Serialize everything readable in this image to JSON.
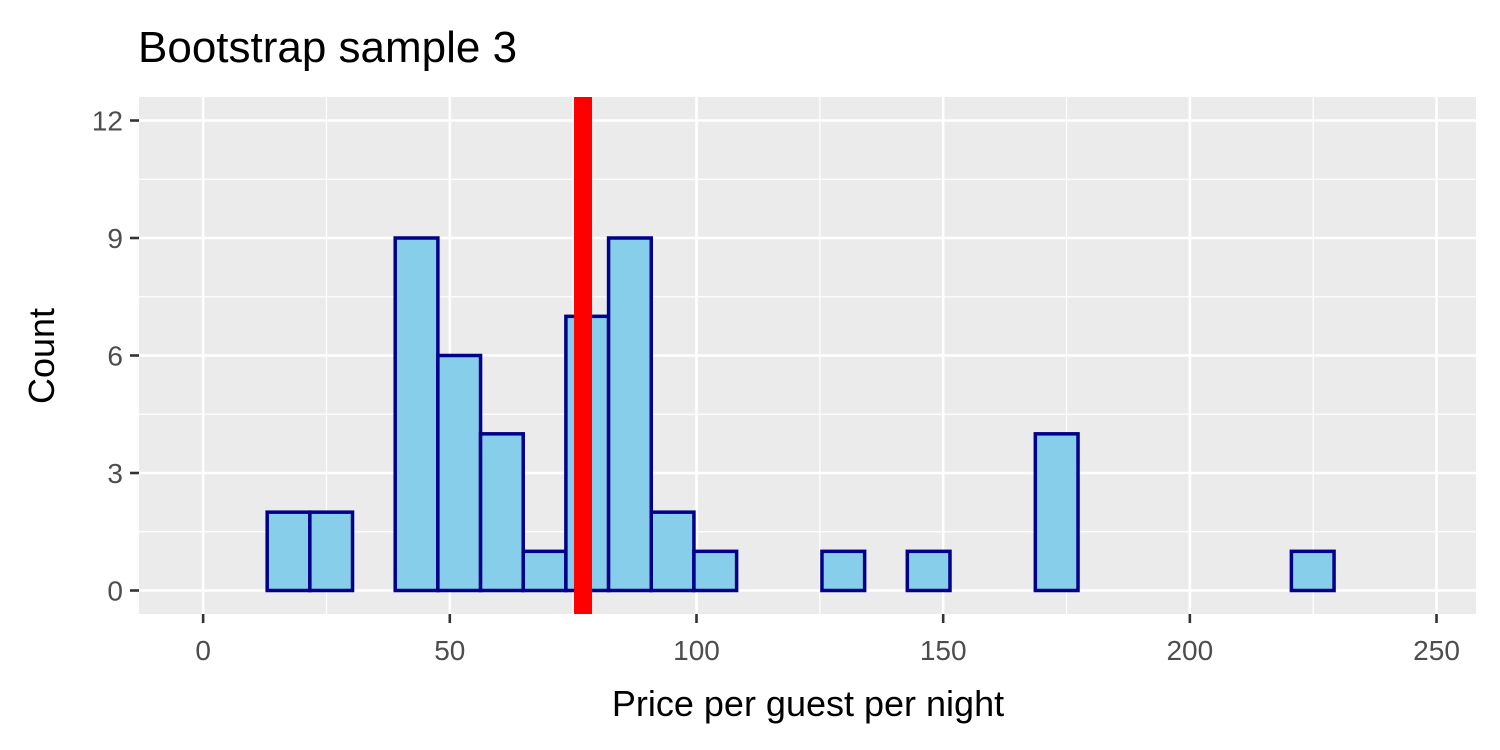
{
  "chart_data": {
    "type": "bar",
    "subtype": "histogram",
    "title": "Bootstrap sample 3",
    "xlabel": "Price per guest per night",
    "ylabel": "Count",
    "xlim": [
      -13,
      258
    ],
    "ylim": [
      -0.6,
      12.6
    ],
    "x_ticks": [
      0,
      50,
      100,
      150,
      200,
      250
    ],
    "y_ticks": [
      0,
      3,
      6,
      9,
      12
    ],
    "x_tick_labels": [
      "0",
      "50",
      "100",
      "150",
      "200",
      "250"
    ],
    "y_tick_labels": [
      "0",
      "3",
      "6",
      "9",
      "12"
    ],
    "bin_width": 8.65,
    "bin_starts": [
      4.33,
      12.98,
      21.63,
      30.28,
      38.93,
      47.58,
      56.23,
      64.88,
      73.53,
      82.18,
      90.83,
      99.48,
      108.13,
      116.78,
      125.43,
      134.08,
      142.73,
      151.38,
      160.03,
      168.68,
      177.33,
      185.98,
      194.63,
      203.28,
      211.93,
      220.58,
      229.23,
      237.88
    ],
    "counts": [
      0,
      2,
      2,
      0,
      9,
      6,
      4,
      1,
      7,
      9,
      2,
      1,
      0,
      0,
      1,
      0,
      1,
      0,
      0,
      4,
      0,
      0,
      0,
      0,
      0,
      1,
      0,
      0
    ],
    "reference_line": {
      "x": 77
    },
    "grid": true,
    "colors": {
      "panel": "#ebebeb",
      "grid": "#ffffff",
      "bar_fill": "#87ceeb",
      "bar_outline": "#00008b",
      "reference_line": "#ff0000",
      "tick": "#333333"
    }
  }
}
